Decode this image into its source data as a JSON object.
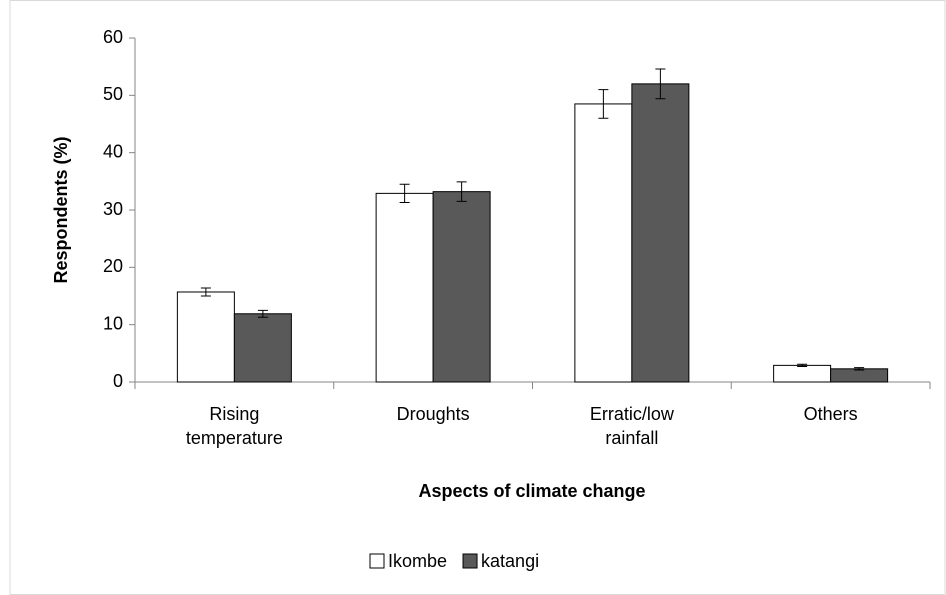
{
  "chart_data": {
    "type": "bar",
    "x_label": "Aspects of climate change",
    "y_label": "Respondents (%)",
    "categories": [
      "Rising temperature",
      "Droughts",
      "Erratic/low rainfall",
      "Others"
    ],
    "series": [
      {
        "name": "Ikombe",
        "color": "#ffffff",
        "values": [
          15.7,
          32.9,
          48.5,
          2.9
        ],
        "errors": [
          0.7,
          1.6,
          2.5,
          0.2
        ]
      },
      {
        "name": "katangi",
        "color": "#595959",
        "values": [
          11.9,
          33.2,
          52.0,
          2.3
        ],
        "errors": [
          0.6,
          1.7,
          2.6,
          0.2
        ]
      }
    ],
    "ylim": [
      0,
      60
    ],
    "yticks": [
      0,
      10,
      20,
      30,
      40,
      50,
      60
    ],
    "legend": "bottom"
  }
}
